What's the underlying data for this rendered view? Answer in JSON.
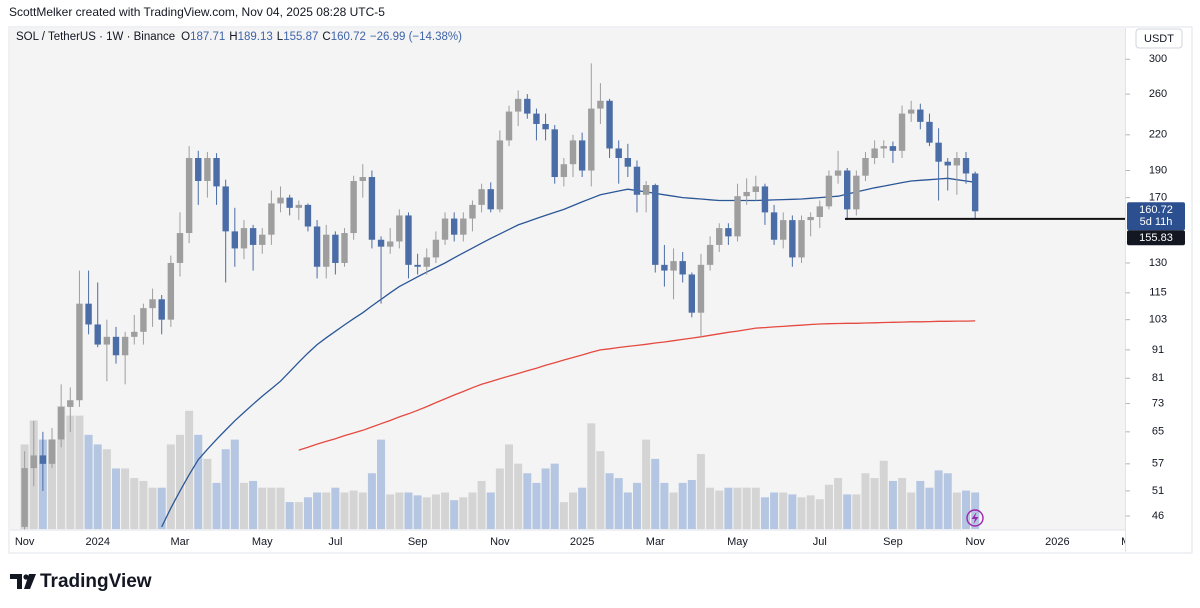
{
  "watermark": "ScottMelker created with TradingView.com, Nov 04, 2025 08:28 UTC-5",
  "footer_logo": "TradingView",
  "chart_data": {
    "type": "candlestick",
    "title": "SOL / TetherUS · 1W · Binance",
    "ohlc_labels": [
      "O",
      "H",
      "L",
      "C"
    ],
    "change": "−26.99 (−14.38%)",
    "currency": "USDT",
    "countdown": "5d 11h",
    "log_scale": true,
    "ylim": [
      43.8,
      322
    ],
    "yticks": [
      300,
      260,
      220,
      190,
      170,
      130,
      115,
      103,
      91,
      81,
      73,
      65,
      57,
      51,
      46
    ],
    "categories": [
      "Nov",
      null,
      null,
      null,
      null,
      null,
      null,
      null,
      "2024",
      null,
      null,
      null,
      null,
      null,
      null,
      null,
      null,
      "Mar",
      null,
      null,
      null,
      null,
      null,
      null,
      null,
      null,
      "May",
      null,
      null,
      null,
      null,
      null,
      null,
      null,
      "Jul",
      null,
      null,
      null,
      null,
      null,
      null,
      null,
      null,
      "Sep",
      null,
      null,
      null,
      null,
      null,
      null,
      null,
      null,
      "Nov",
      null,
      null,
      null,
      null,
      null,
      null,
      null,
      null,
      "2025",
      null,
      null,
      null,
      null,
      null,
      null,
      null,
      "Mar",
      null,
      null,
      null,
      null,
      null,
      null,
      null,
      null,
      "May",
      null,
      null,
      null,
      null,
      null,
      null,
      null,
      null,
      "Jul",
      null,
      null,
      null,
      null,
      null,
      null,
      null,
      "Sep",
      null,
      null,
      null,
      null,
      null,
      null,
      null,
      null,
      "Nov",
      null,
      null,
      null,
      null,
      null,
      null,
      null,
      null,
      "2026",
      null,
      null,
      null,
      null,
      null,
      null,
      null,
      "Mar"
    ],
    "open": [
      44,
      56,
      59,
      57,
      63,
      72,
      74,
      110,
      101,
      93,
      96,
      89,
      96,
      98,
      108,
      112,
      103,
      130,
      147,
      200,
      182,
      200,
      178,
      148,
      138,
      150,
      140,
      146,
      166,
      170,
      163,
      165,
      151,
      128,
      146,
      130,
      147,
      182,
      185,
      143,
      139,
      142,
      158,
      129,
      128,
      133,
      143,
      156,
      146,
      156,
      165,
      176,
      162,
      215,
      242,
      255,
      240,
      230,
      225,
      185,
      195,
      215,
      190,
      245,
      253,
      208,
      200,
      193,
      172,
      179,
      129,
      126,
      131,
      124,
      106,
      129,
      140,
      150,
      145,
      171,
      174,
      178,
      160,
      143,
      155,
      133,
      155,
      157,
      164,
      186,
      190,
      162,
      186,
      200,
      208,
      210,
      206,
      240,
      244,
      232,
      213,
      197,
      194,
      200,
      187.71,
      null,
      null,
      null,
      null,
      null,
      null,
      null,
      null,
      null,
      null,
      null,
      null,
      null,
      null,
      null,
      null,
      null
    ],
    "high": [
      60,
      68,
      65,
      66,
      79,
      78,
      126,
      126,
      120,
      103,
      100,
      98,
      105,
      110,
      117,
      114,
      134,
      160,
      210,
      206,
      205,
      204,
      183,
      163,
      155,
      152,
      150,
      175,
      178,
      172,
      168,
      166,
      155,
      152,
      148,
      150,
      186,
      195,
      190,
      145,
      150,
      162,
      160,
      135,
      138,
      148,
      160,
      160,
      160,
      168,
      180,
      181,
      224,
      248,
      264,
      260,
      245,
      240,
      229,
      200,
      220,
      222,
      295,
      272,
      255,
      215,
      212,
      198,
      182,
      180,
      140,
      138,
      136,
      125,
      135,
      145,
      153,
      153,
      180,
      184,
      186,
      180,
      165,
      160,
      158,
      158,
      160,
      168,
      190,
      206,
      192,
      190,
      205,
      215,
      215,
      214,
      248,
      253,
      250,
      240,
      226,
      200,
      205,
      205,
      189.13,
      null,
      null,
      null,
      null,
      null,
      null,
      null,
      null,
      null,
      null,
      null,
      null,
      null,
      null,
      null,
      null,
      null
    ],
    "low": [
      42,
      52,
      51,
      56,
      61,
      65,
      72,
      97,
      92,
      80,
      86,
      79,
      93,
      93,
      100,
      97,
      100,
      123,
      141,
      165,
      170,
      165,
      120,
      128,
      132,
      126,
      135,
      140,
      160,
      158,
      155,
      148,
      122,
      122,
      124,
      128,
      143,
      170,
      138,
      110,
      135,
      138,
      122,
      124,
      124,
      130,
      140,
      142,
      142,
      148,
      160,
      160,
      160,
      210,
      228,
      235,
      215,
      215,
      180,
      178,
      185,
      185,
      178,
      230,
      200,
      180,
      185,
      160,
      160,
      125,
      118,
      112,
      120,
      104,
      96,
      126,
      136,
      140,
      142,
      165,
      168,
      152,
      140,
      138,
      128,
      130,
      145,
      150,
      162,
      180,
      155,
      158,
      182,
      195,
      200,
      196,
      200,
      232,
      225,
      210,
      168,
      175,
      172,
      180,
      155.87,
      null,
      null,
      null,
      null,
      null,
      null,
      null,
      null,
      null,
      null,
      null,
      null,
      null,
      null,
      null,
      null,
      null
    ],
    "close": [
      56,
      59,
      57,
      63,
      72,
      74,
      110,
      101,
      93,
      96,
      89,
      96,
      98,
      108,
      112,
      103,
      130,
      147,
      200,
      182,
      200,
      178,
      148,
      138,
      150,
      140,
      146,
      166,
      170,
      163,
      165,
      151,
      128,
      146,
      130,
      147,
      182,
      185,
      143,
      139,
      142,
      158,
      129,
      128,
      133,
      143,
      156,
      146,
      156,
      165,
      176,
      162,
      215,
      242,
      255,
      240,
      230,
      225,
      185,
      195,
      215,
      190,
      245,
      253,
      208,
      200,
      193,
      172,
      179,
      129,
      126,
      131,
      124,
      106,
      129,
      140,
      150,
      145,
      171,
      174,
      178,
      160,
      143,
      155,
      133,
      155,
      157,
      164,
      186,
      190,
      162,
      186,
      200,
      208,
      210,
      206,
      240,
      244,
      232,
      213,
      197,
      194,
      200,
      187.71,
      160.72,
      null,
      null,
      null,
      null,
      null,
      null,
      null,
      null,
      null,
      null,
      null,
      null,
      null,
      null,
      null,
      null,
      null
    ],
    "volume": [
      88,
      113,
      93,
      93,
      128,
      118,
      118,
      98,
      88,
      83,
      63,
      63,
      53,
      50,
      43,
      43,
      88,
      98,
      123,
      98,
      73,
      48,
      83,
      93,
      48,
      50,
      43,
      43,
      43,
      28,
      28,
      33,
      38,
      38,
      43,
      38,
      40,
      38,
      58,
      93,
      36,
      38,
      38,
      35,
      33,
      36,
      38,
      30,
      33,
      38,
      50,
      38,
      63,
      88,
      68,
      58,
      48,
      63,
      68,
      28,
      38,
      43,
      110,
      81,
      58,
      53,
      38,
      48,
      93,
      73,
      48,
      38,
      48,
      51,
      78,
      43,
      40,
      43,
      43,
      43,
      43,
      33,
      38,
      38,
      36,
      33,
      35,
      31,
      46,
      53,
      36,
      36,
      58,
      53,
      71,
      50,
      53,
      38,
      50,
      43,
      61,
      58,
      38,
      40,
      38,
      null,
      null,
      null,
      null,
      null,
      null,
      null,
      null,
      null,
      null,
      null,
      null,
      null,
      null,
      null,
      null,
      null
    ],
    "up_color": "#9e9e9e",
    "down_color": "#4a6da7",
    "volume_up_color": "#d4d4d4",
    "volume_down_color": "#b4c6e1",
    "moving_averages": [
      {
        "color": "#2b5797",
        "values": [
          null,
          null,
          null,
          null,
          null,
          null,
          null,
          null,
          null,
          null,
          null,
          null,
          null,
          null,
          null,
          44,
          47.5,
          51,
          54.5,
          58,
          60.5,
          63,
          65.5,
          68,
          70.4,
          72.8,
          75.2,
          77.6,
          80,
          83.2,
          86.5,
          89.8,
          93,
          95.6,
          98.2,
          100.8,
          103.4,
          106,
          109,
          112,
          115,
          118,
          120.4,
          122.8,
          125.2,
          127.6,
          130,
          132.8,
          135.5,
          138.2,
          141,
          143.8,
          146.5,
          149.2,
          152,
          154,
          156,
          158,
          160,
          162,
          164.5,
          167,
          169.5,
          172,
          173.3,
          174.7,
          176,
          175,
          174,
          173,
          172,
          171,
          170,
          169.5,
          169,
          168.5,
          168,
          168,
          168,
          168,
          168,
          168.2,
          168.4,
          168.6,
          168.8,
          169,
          169.5,
          170,
          170.5,
          171,
          172.5,
          174,
          175.5,
          177,
          178.2,
          179.5,
          180.8,
          182,
          182.5,
          183,
          183.5,
          184,
          183,
          182,
          181,
          null,
          null,
          null,
          null,
          null,
          null,
          null,
          null,
          null,
          null,
          null,
          null,
          null,
          null,
          null,
          null,
          null
        ]
      },
      {
        "color": "#e5493f",
        "values": [
          null,
          null,
          null,
          null,
          null,
          null,
          null,
          null,
          null,
          null,
          null,
          null,
          null,
          null,
          null,
          null,
          null,
          null,
          null,
          null,
          null,
          null,
          null,
          null,
          null,
          null,
          null,
          null,
          null,
          null,
          60.3,
          61,
          61.8,
          62.5,
          63.2,
          64,
          64.7,
          65.4,
          66.3,
          67.2,
          68.1,
          69.1,
          70,
          71,
          72.1,
          73.3,
          74.4,
          75.6,
          76.7,
          77.9,
          79,
          79.9,
          80.8,
          81.7,
          82.6,
          83.5,
          84.4,
          85.4,
          86.3,
          87.3,
          88.2,
          89.1,
          90.1,
          91,
          91.4,
          91.9,
          92.3,
          92.7,
          93.1,
          93.6,
          94,
          94.5,
          95,
          95.5,
          96,
          96.6,
          97.2,
          97.8,
          98.3,
          98.9,
          99.5,
          99.7,
          100,
          100.2,
          100.5,
          100.7,
          101,
          101.2,
          101.3,
          101.4,
          101.5,
          101.5,
          101.6,
          101.7,
          101.8,
          101.9,
          102,
          102.1,
          102.1,
          102.2,
          102.3,
          102.3,
          102.4,
          102.4,
          102.5,
          null,
          null,
          null,
          null,
          null,
          null,
          null,
          null,
          null,
          null,
          null,
          null,
          null,
          null,
          null,
          null,
          null
        ]
      }
    ],
    "horizontal_line": 155.83
  }
}
